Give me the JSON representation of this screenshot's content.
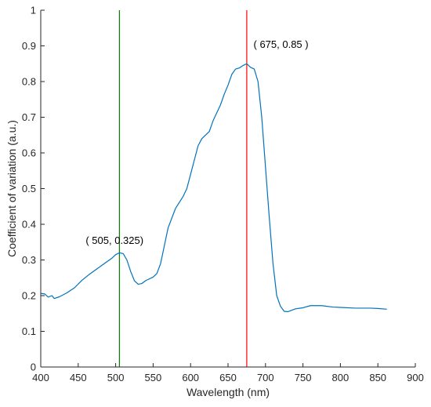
{
  "chart_data": {
    "type": "line",
    "title": "",
    "xlabel": "Wavelength (nm)",
    "ylabel": "Coefficient of variation (a.u.)",
    "xlim": [
      400,
      900
    ],
    "ylim": [
      0,
      1
    ],
    "x_ticks": [
      400,
      450,
      500,
      550,
      600,
      650,
      700,
      750,
      800,
      850,
      900
    ],
    "y_ticks": [
      0,
      0.1,
      0.2,
      0.3,
      0.4,
      0.5,
      0.6,
      0.7,
      0.8,
      0.9,
      1
    ],
    "grid": false,
    "series": [
      {
        "color": "#0072BD",
        "points": [
          [
            400,
            0.206
          ],
          [
            405,
            0.205
          ],
          [
            410,
            0.196
          ],
          [
            415,
            0.2
          ],
          [
            418,
            0.192
          ],
          [
            425,
            0.197
          ],
          [
            435,
            0.208
          ],
          [
            445,
            0.222
          ],
          [
            455,
            0.243
          ],
          [
            465,
            0.26
          ],
          [
            475,
            0.275
          ],
          [
            485,
            0.29
          ],
          [
            495,
            0.305
          ],
          [
            500,
            0.315
          ],
          [
            505,
            0.32
          ],
          [
            510,
            0.318
          ],
          [
            515,
            0.3
          ],
          [
            520,
            0.268
          ],
          [
            525,
            0.242
          ],
          [
            530,
            0.232
          ],
          [
            535,
            0.234
          ],
          [
            540,
            0.242
          ],
          [
            550,
            0.252
          ],
          [
            555,
            0.262
          ],
          [
            560,
            0.29
          ],
          [
            565,
            0.34
          ],
          [
            570,
            0.39
          ],
          [
            580,
            0.445
          ],
          [
            590,
            0.478
          ],
          [
            595,
            0.5
          ],
          [
            600,
            0.54
          ],
          [
            605,
            0.58
          ],
          [
            610,
            0.62
          ],
          [
            615,
            0.64
          ],
          [
            625,
            0.66
          ],
          [
            630,
            0.69
          ],
          [
            640,
            0.735
          ],
          [
            645,
            0.765
          ],
          [
            650,
            0.79
          ],
          [
            655,
            0.82
          ],
          [
            660,
            0.835
          ],
          [
            665,
            0.838
          ],
          [
            670,
            0.845
          ],
          [
            675,
            0.85
          ],
          [
            680,
            0.84
          ],
          [
            685,
            0.835
          ],
          [
            690,
            0.8
          ],
          [
            695,
            0.7
          ],
          [
            700,
            0.56
          ],
          [
            705,
            0.42
          ],
          [
            710,
            0.29
          ],
          [
            715,
            0.2
          ],
          [
            720,
            0.17
          ],
          [
            725,
            0.156
          ],
          [
            730,
            0.155
          ],
          [
            740,
            0.163
          ],
          [
            750,
            0.166
          ],
          [
            760,
            0.172
          ],
          [
            775,
            0.172
          ],
          [
            790,
            0.168
          ],
          [
            800,
            0.167
          ],
          [
            820,
            0.165
          ],
          [
            840,
            0.165
          ],
          [
            850,
            0.164
          ],
          [
            862,
            0.162
          ]
        ]
      }
    ],
    "vlines": [
      {
        "x": 505,
        "color": "#008000"
      },
      {
        "x": 675,
        "color": "#FF0000"
      }
    ],
    "annotations": [
      {
        "text": "( 505, 0.325)",
        "x": 460,
        "y": 0.345
      },
      {
        "text": "( 675, 0.85 )",
        "x": 684,
        "y": 0.895
      }
    ]
  }
}
